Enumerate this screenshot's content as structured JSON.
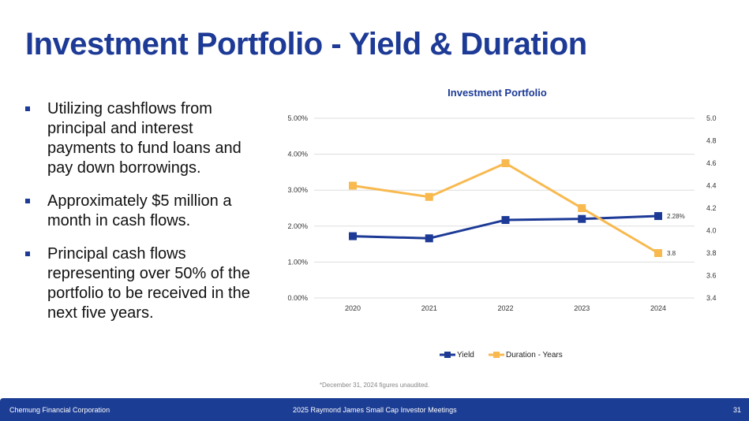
{
  "title": "Investment Portfolio - Yield & Duration",
  "bullets": [
    "Utilizing cashflows from principal and interest payments to fund loans and pay down borrowings.",
    "Approximately $5 million a month in cash flows.",
    "Principal cash flows representing over 50% of the portfolio to be received in the next five years."
  ],
  "chart_data": {
    "type": "line",
    "title": "Investment Portfolio",
    "categories": [
      "2020",
      "2021",
      "2022",
      "2023",
      "2024"
    ],
    "series": [
      {
        "name": "Yield",
        "axis": "left",
        "color": "#1c3a96",
        "values": [
          1.72,
          1.66,
          2.17,
          2.2,
          2.28
        ],
        "end_label": "2.28%"
      },
      {
        "name": "Duration - Years",
        "axis": "right",
        "color": "#f8b94f",
        "values": [
          4.4,
          4.3,
          4.6,
          4.2,
          3.8
        ],
        "end_label": "3.8"
      }
    ],
    "left_axis": {
      "ylim": [
        0,
        5
      ],
      "ticks": [
        "0.00%",
        "1.00%",
        "2.00%",
        "3.00%",
        "4.00%",
        "5.00%"
      ]
    },
    "right_axis": {
      "ylim": [
        3.4,
        5.0
      ],
      "ticks": [
        "3.4",
        "3.6",
        "3.8",
        "4.0",
        "4.2",
        "4.4",
        "4.6",
        "4.8",
        "5.0"
      ]
    },
    "grid": true,
    "legend": "bottom"
  },
  "footnote": "*December 31, 2024 figures unaudited.",
  "footer": {
    "company": "Chemung Financial Corporation",
    "event": "2025 Raymond James Small Cap Investor Meetings",
    "page": "31"
  }
}
